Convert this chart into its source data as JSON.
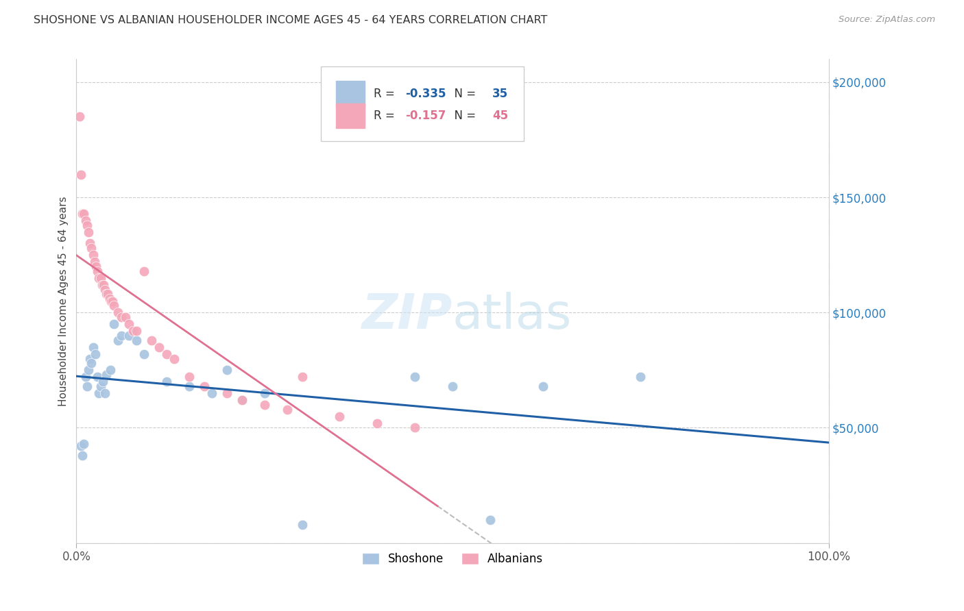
{
  "title": "SHOSHONE VS ALBANIAN HOUSEHOLDER INCOME AGES 45 - 64 YEARS CORRELATION CHART",
  "source": "Source: ZipAtlas.com",
  "ylabel": "Householder Income Ages 45 - 64 years",
  "xlim": [
    0,
    1.0
  ],
  "ylim": [
    0,
    210000
  ],
  "shoshone_R": -0.335,
  "shoshone_N": 35,
  "albanian_R": -0.157,
  "albanian_N": 45,
  "shoshone_color": "#a8c4e0",
  "albanian_color": "#f4a7b9",
  "shoshone_line_color": "#1f5fa6",
  "albanian_line_color": "#e07090",
  "shoshone_x": [
    0.006,
    0.008,
    0.01,
    0.012,
    0.014,
    0.016,
    0.018,
    0.02,
    0.022,
    0.025,
    0.028,
    0.03,
    0.032,
    0.035,
    0.038,
    0.04,
    0.045,
    0.05,
    0.055,
    0.06,
    0.07,
    0.08,
    0.09,
    0.12,
    0.15,
    0.18,
    0.2,
    0.22,
    0.25,
    0.45,
    0.5,
    0.55,
    0.62,
    0.75,
    0.3
  ],
  "shoshone_y": [
    42000,
    38000,
    43000,
    72000,
    68000,
    75000,
    80000,
    78000,
    85000,
    82000,
    72000,
    65000,
    68000,
    70000,
    65000,
    73000,
    75000,
    95000,
    88000,
    90000,
    90000,
    88000,
    82000,
    70000,
    68000,
    65000,
    75000,
    62000,
    65000,
    72000,
    68000,
    10000,
    68000,
    72000,
    8000
  ],
  "albanian_x": [
    0.004,
    0.006,
    0.008,
    0.01,
    0.012,
    0.014,
    0.016,
    0.018,
    0.02,
    0.022,
    0.024,
    0.026,
    0.028,
    0.03,
    0.032,
    0.034,
    0.036,
    0.038,
    0.04,
    0.042,
    0.044,
    0.046,
    0.048,
    0.05,
    0.055,
    0.06,
    0.065,
    0.07,
    0.075,
    0.08,
    0.09,
    0.1,
    0.11,
    0.12,
    0.13,
    0.15,
    0.17,
    0.2,
    0.22,
    0.25,
    0.28,
    0.3,
    0.35,
    0.4,
    0.45
  ],
  "albanian_y": [
    185000,
    160000,
    143000,
    143000,
    140000,
    138000,
    135000,
    130000,
    128000,
    125000,
    122000,
    120000,
    118000,
    115000,
    115000,
    112000,
    112000,
    110000,
    108000,
    108000,
    106000,
    105000,
    105000,
    103000,
    100000,
    98000,
    98000,
    95000,
    92000,
    92000,
    118000,
    88000,
    85000,
    82000,
    80000,
    72000,
    68000,
    65000,
    62000,
    60000,
    58000,
    72000,
    55000,
    52000,
    50000
  ],
  "yticks": [
    0,
    50000,
    100000,
    150000,
    200000
  ],
  "ytick_labels": [
    "",
    "$50,000",
    "$100,000",
    "$150,000",
    "$200,000"
  ]
}
